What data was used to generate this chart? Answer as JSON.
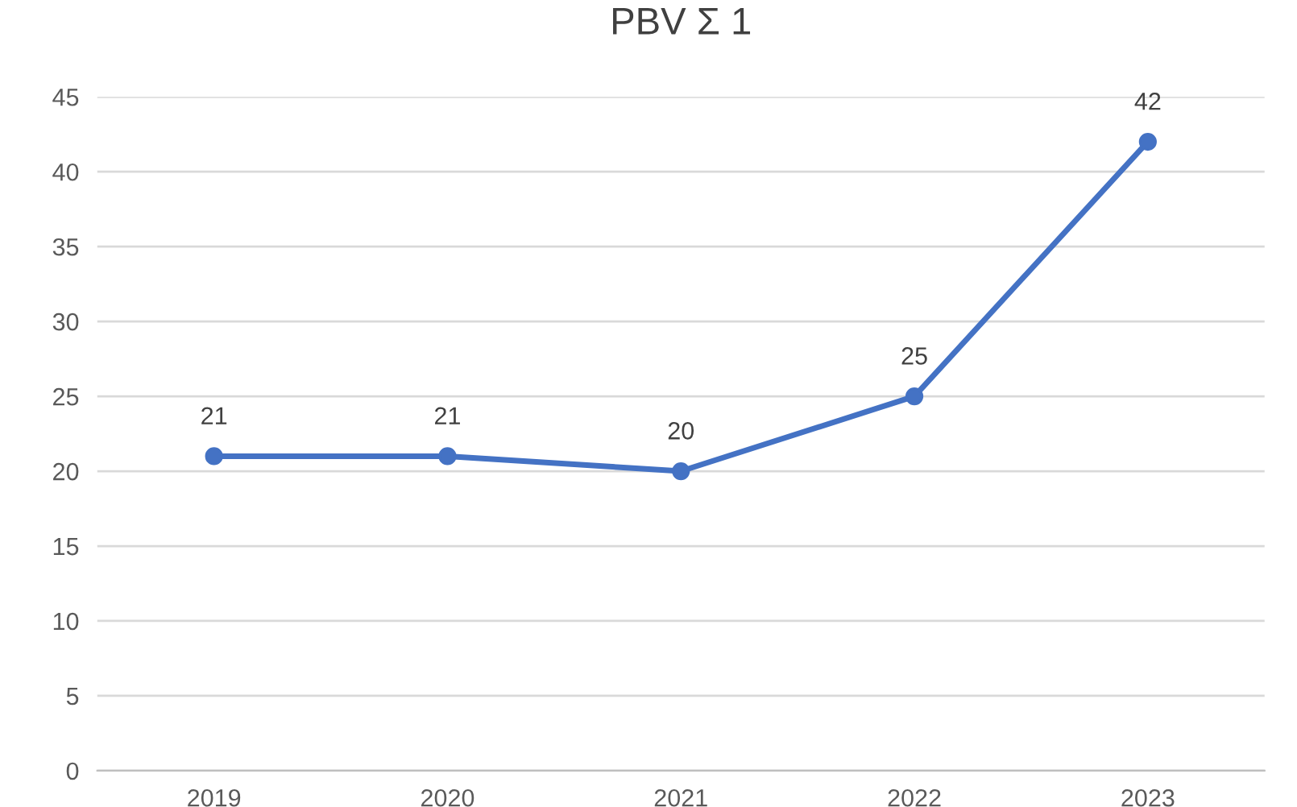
{
  "chart_data": {
    "type": "line",
    "title": "PBV Σ 1",
    "categories": [
      "2019",
      "2020",
      "2021",
      "2022",
      "2023"
    ],
    "series": [
      {
        "color": "#4472c4",
        "values": [
          21,
          21,
          20,
          25,
          42
        ]
      }
    ],
    "ylim": [
      0,
      45
    ],
    "yticks": [
      0,
      5,
      10,
      15,
      20,
      25,
      30,
      35,
      40,
      45
    ],
    "grid": "y",
    "marker": "circle",
    "line_style": "solid",
    "data_labels": true
  }
}
